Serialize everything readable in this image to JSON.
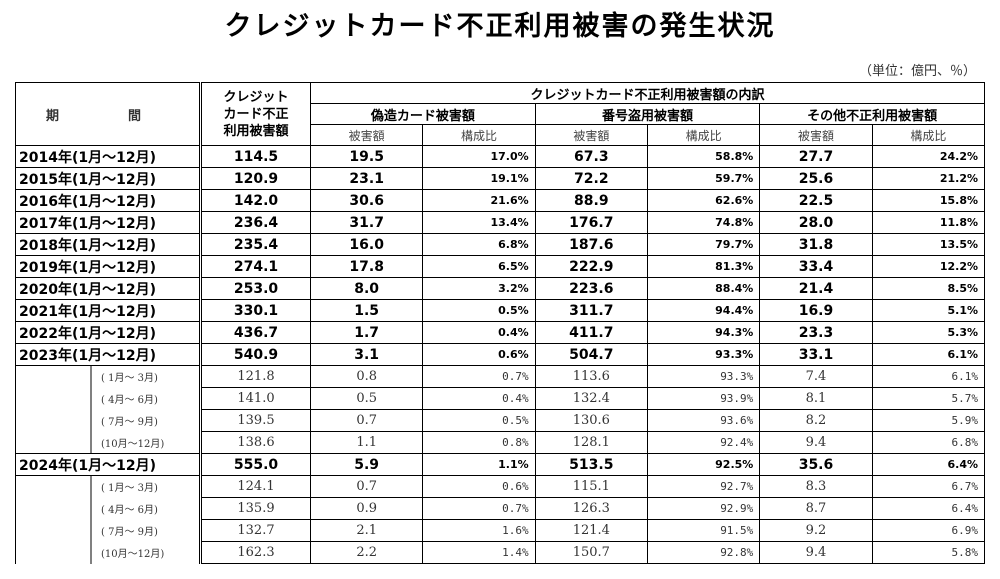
{
  "title": "クレジットカード不正利用被害の発生状況",
  "unit_note": "（単位：億円、％）",
  "headers": {
    "period": "期　間",
    "total": [
      "クレジット",
      "カード不正",
      "利用被害額"
    ],
    "breakdown": "クレジットカード不正利用被害額の内訳",
    "groups": [
      "偽造カード被害額",
      "番号盗用被害額",
      "その他不正利用被害額"
    ],
    "sub_amount": "被害額",
    "sub_ratio": "構成比"
  },
  "rows": [
    {
      "kind": "year",
      "period": "2014年(1月～12月)",
      "total": "114.5",
      "v": [
        "19.5",
        "17.0%",
        "67.3",
        "58.8%",
        "27.7",
        "24.2%"
      ]
    },
    {
      "kind": "year",
      "period": "2015年(1月～12月)",
      "total": "120.9",
      "v": [
        "23.1",
        "19.1%",
        "72.2",
        "59.7%",
        "25.6",
        "21.2%"
      ]
    },
    {
      "kind": "year",
      "period": "2016年(1月～12月)",
      "total": "142.0",
      "v": [
        "30.6",
        "21.6%",
        "88.9",
        "62.6%",
        "22.5",
        "15.8%"
      ]
    },
    {
      "kind": "year",
      "period": "2017年(1月～12月)",
      "total": "236.4",
      "v": [
        "31.7",
        "13.4%",
        "176.7",
        "74.8%",
        "28.0",
        "11.8%"
      ]
    },
    {
      "kind": "year",
      "period": "2018年(1月～12月)",
      "total": "235.4",
      "v": [
        "16.0",
        "6.8%",
        "187.6",
        "79.7%",
        "31.8",
        "13.5%"
      ]
    },
    {
      "kind": "year",
      "period": "2019年(1月～12月)",
      "total": "274.1",
      "v": [
        "17.8",
        "6.5%",
        "222.9",
        "81.3%",
        "33.4",
        "12.2%"
      ]
    },
    {
      "kind": "year",
      "period": "2020年(1月～12月)",
      "total": "253.0",
      "v": [
        "8.0",
        "3.2%",
        "223.6",
        "88.4%",
        "21.4",
        "8.5%"
      ]
    },
    {
      "kind": "year",
      "period": "2021年(1月～12月)",
      "total": "330.1",
      "v": [
        "1.5",
        "0.5%",
        "311.7",
        "94.4%",
        "16.9",
        "5.1%"
      ]
    },
    {
      "kind": "year",
      "period": "2022年(1月～12月)",
      "total": "436.7",
      "v": [
        "1.7",
        "0.4%",
        "411.7",
        "94.3%",
        "23.3",
        "5.3%"
      ]
    },
    {
      "kind": "year",
      "period": "2023年(1月～12月)",
      "total": "540.9",
      "v": [
        "3.1",
        "0.6%",
        "504.7",
        "93.3%",
        "33.1",
        "6.1%"
      ]
    },
    {
      "kind": "quarter",
      "period": "( 1月～ 3月)",
      "total": "121.8",
      "v": [
        "0.8",
        "0.7%",
        "113.6",
        "93.3%",
        "7.4",
        "6.1%"
      ]
    },
    {
      "kind": "quarter",
      "period": "( 4月～ 6月)",
      "total": "141.0",
      "v": [
        "0.5",
        "0.4%",
        "132.4",
        "93.9%",
        "8.1",
        "5.7%"
      ]
    },
    {
      "kind": "quarter",
      "period": "( 7月～ 9月)",
      "total": "139.5",
      "v": [
        "0.7",
        "0.5%",
        "130.6",
        "93.6%",
        "8.2",
        "5.9%"
      ]
    },
    {
      "kind": "quarter",
      "period": "(10月～12月)",
      "total": "138.6",
      "v": [
        "1.1",
        "0.8%",
        "128.1",
        "92.4%",
        "9.4",
        "6.8%"
      ]
    },
    {
      "kind": "year",
      "period": "2024年(1月～12月)",
      "total": "555.0",
      "v": [
        "5.9",
        "1.1%",
        "513.5",
        "92.5%",
        "35.6",
        "6.4%"
      ]
    },
    {
      "kind": "quarter",
      "period": "( 1月～ 3月)",
      "total": "124.1",
      "v": [
        "0.7",
        "0.6%",
        "115.1",
        "92.7%",
        "8.3",
        "6.7%"
      ]
    },
    {
      "kind": "quarter",
      "period": "( 4月～ 6月)",
      "total": "135.9",
      "v": [
        "0.9",
        "0.7%",
        "126.3",
        "92.9%",
        "8.7",
        "6.4%"
      ]
    },
    {
      "kind": "quarter",
      "period": "( 7月～ 9月)",
      "total": "132.7",
      "v": [
        "2.1",
        "1.6%",
        "121.4",
        "91.5%",
        "9.2",
        "6.9%"
      ]
    },
    {
      "kind": "quarter",
      "period": "(10月～12月)",
      "total": "162.3",
      "v": [
        "2.2",
        "1.4%",
        "150.7",
        "92.8%",
        "9.4",
        "5.8%"
      ]
    }
  ]
}
